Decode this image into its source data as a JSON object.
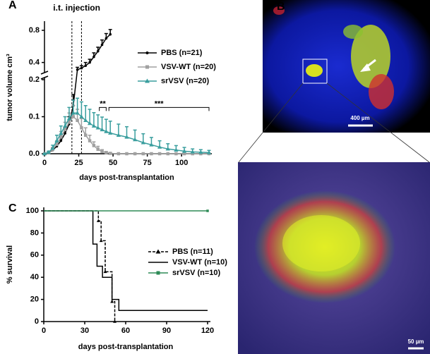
{
  "chart_data": [
    {
      "type": "line",
      "panel_label": "A",
      "x_label": "days post-transplantation",
      "y_label": "tumor volume cm³",
      "xlim": [
        0,
        120
      ],
      "xticks": [
        0,
        25,
        50,
        75,
        100
      ],
      "ylim": [
        0,
        0.8
      ],
      "y_break": [
        0.2,
        0.3
      ],
      "yticks": [
        {
          "value": 0,
          "label": "0.0"
        },
        0.1,
        0.2,
        0.4,
        0.8
      ],
      "vlines": [
        20,
        27
      ],
      "vline_label": "i.t. injection",
      "brackets": [
        {
          "text": "**",
          "x": [
            40,
            45
          ],
          "y": 0.125
        },
        {
          "text": "***",
          "x": [
            47,
            120
          ],
          "y": 0.125
        }
      ],
      "series": [
        {
          "name": "PBS (n=21)",
          "color": "#000000",
          "marker": "circle",
          "x": [
            0,
            3,
            6,
            9,
            12,
            15,
            18,
            21,
            24,
            27,
            30,
            33,
            36,
            39,
            42,
            45,
            48
          ],
          "values": [
            0,
            0.003,
            0.01,
            0.02,
            0.035,
            0.055,
            0.08,
            0.13,
            0.31,
            0.33,
            0.36,
            0.4,
            0.47,
            0.54,
            0.62,
            0.7,
            0.75
          ],
          "errors": [
            0,
            0.002,
            0.005,
            0.008,
            0.01,
            0.015,
            0.02,
            0.03,
            0.03,
            0.03,
            0.04,
            0.04,
            0.05,
            0.05,
            0.06,
            0.06,
            0.06
          ]
        },
        {
          "name": "VSV-WT (n=20)",
          "color": "#a0a0a0",
          "marker": "square",
          "x": [
            0,
            3,
            6,
            9,
            12,
            15,
            18,
            21,
            24,
            27,
            30,
            33,
            36,
            39,
            42,
            45,
            48,
            54,
            60,
            66,
            72,
            78,
            84,
            90,
            96,
            102,
            108,
            114,
            120
          ],
          "values": [
            0,
            0.003,
            0.012,
            0.025,
            0.045,
            0.065,
            0.085,
            0.1,
            0.09,
            0.07,
            0.05,
            0.035,
            0.022,
            0.012,
            0.006,
            0.003,
            0.001,
            0,
            0,
            0,
            0,
            0,
            0,
            0,
            0,
            0,
            0,
            0,
            0
          ],
          "errors": [
            0,
            0.002,
            0.005,
            0.01,
            0.015,
            0.02,
            0.025,
            0.03,
            0.03,
            0.025,
            0.02,
            0.015,
            0.01,
            0.008,
            0.005,
            0.003,
            0.002,
            0,
            0,
            0,
            0,
            0,
            0,
            0,
            0,
            0,
            0,
            0,
            0
          ]
        },
        {
          "name": "srVSV (n=20)",
          "color": "#3a9e9e",
          "marker": "triangle",
          "x": [
            0,
            3,
            6,
            9,
            12,
            15,
            18,
            21,
            24,
            27,
            30,
            33,
            36,
            39,
            42,
            45,
            48,
            54,
            60,
            66,
            72,
            78,
            84,
            90,
            96,
            102,
            108,
            114,
            120
          ],
          "values": [
            0,
            0.004,
            0.015,
            0.035,
            0.055,
            0.075,
            0.095,
            0.11,
            0.11,
            0.1,
            0.09,
            0.082,
            0.075,
            0.07,
            0.065,
            0.06,
            0.056,
            0.05,
            0.045,
            0.038,
            0.03,
            0.024,
            0.018,
            0.013,
            0.01,
            0.007,
            0.005,
            0.004,
            0.003
          ],
          "errors": [
            0,
            0.003,
            0.008,
            0.015,
            0.02,
            0.025,
            0.03,
            0.035,
            0.04,
            0.04,
            0.04,
            0.038,
            0.036,
            0.035,
            0.034,
            0.033,
            0.032,
            0.03,
            0.028,
            0.026,
            0.024,
            0.02,
            0.017,
            0.014,
            0.012,
            0.01,
            0.008,
            0.007,
            0.006
          ]
        }
      ]
    },
    {
      "type": "step",
      "panel_label": "C",
      "x_label": "days post-transplantation",
      "y_label": "% survival",
      "xlim": [
        0,
        120
      ],
      "xticks": [
        0,
        30,
        60,
        90,
        120
      ],
      "ylim": [
        0,
        100
      ],
      "yticks": [
        0,
        20,
        40,
        60,
        80,
        100
      ],
      "series": [
        {
          "name": "PBS (n=11)",
          "color": "#000000",
          "dash": true,
          "marker": "triangle",
          "x": [
            0,
            40,
            42,
            45,
            50,
            52
          ],
          "values": [
            100,
            91,
            73,
            45,
            18,
            0
          ]
        },
        {
          "name": "VSV-WT (n=10)",
          "color": "#000000",
          "x": [
            0,
            36,
            39,
            43,
            50,
            55,
            120
          ],
          "values": [
            100,
            70,
            50,
            40,
            20,
            10,
            10
          ]
        },
        {
          "name": "srVSV (n=10)",
          "color": "#2e8b57",
          "marker": "square",
          "x": [
            0,
            120
          ],
          "values": [
            100,
            100
          ]
        }
      ]
    }
  ],
  "images": {
    "label": "B",
    "scale_bars": [
      "400 µm",
      "50 µm"
    ]
  }
}
